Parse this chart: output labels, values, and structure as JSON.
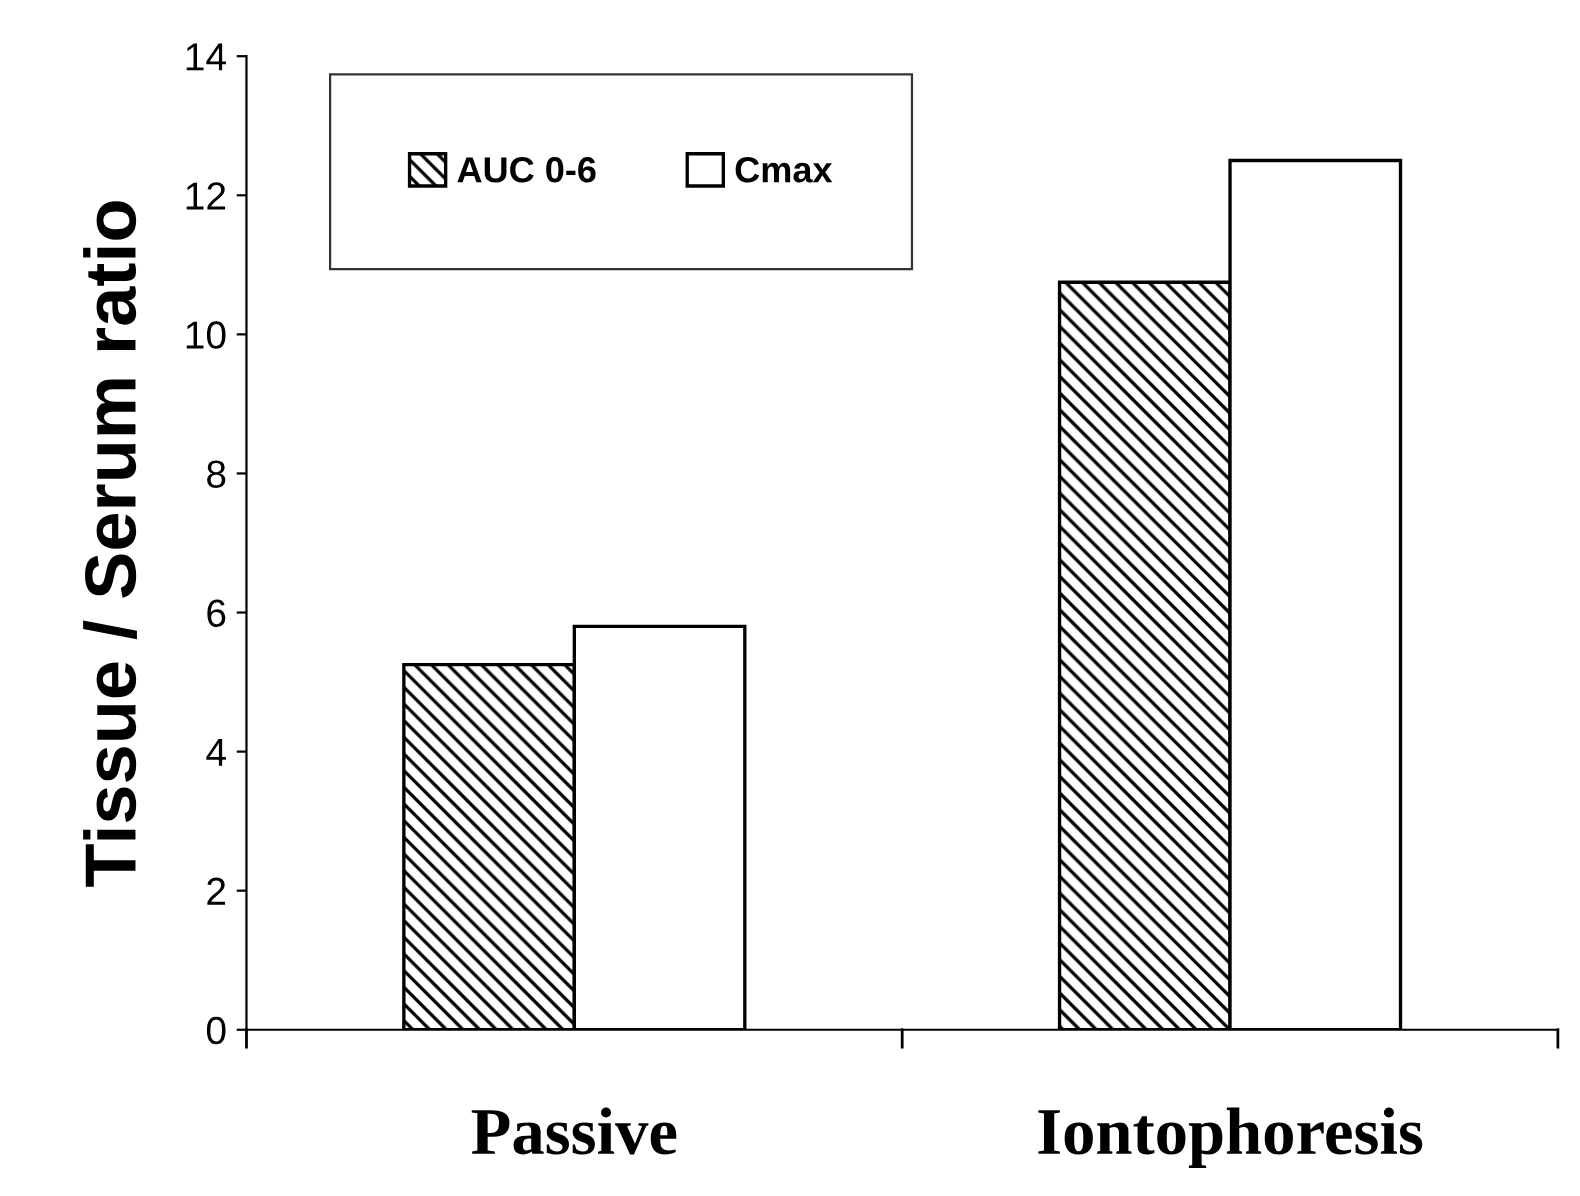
{
  "chart_data": {
    "type": "bar",
    "ylabel": "Tissue / Serum ratio",
    "categories": [
      "Passive",
      "Iontophoresis"
    ],
    "series": [
      {
        "name": "AUC 0-6",
        "color": "#000000",
        "values": [
          5.25,
          10.75
        ]
      },
      {
        "name": "Cmax",
        "color": "#ffffff",
        "values": [
          5.8,
          12.5
        ]
      }
    ],
    "ylim": [
      0,
      14
    ],
    "yticks": [
      0,
      2,
      4,
      6,
      8,
      10,
      12,
      14
    ],
    "grid": false,
    "legend": "top left"
  }
}
